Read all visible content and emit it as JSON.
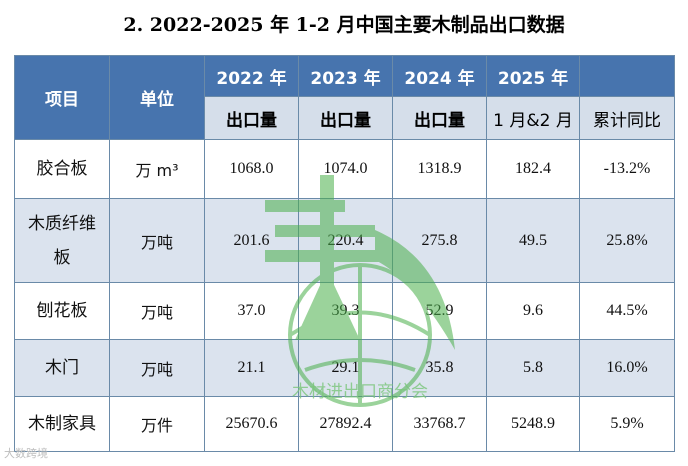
{
  "title": "2. 2022-2025 年 1-2 月中国主要木制品出口数据",
  "header": {
    "item": "项目",
    "unit": "单位",
    "years": [
      "2022 年",
      "2023 年",
      "2024 年",
      "2025 年"
    ],
    "sub": [
      "出口量",
      "出口量",
      "出口量",
      "1 月&2 月",
      "累计同比"
    ]
  },
  "rows": [
    {
      "item": "胶合板",
      "unit": "万 m³",
      "v": [
        "1068.0",
        "1074.0",
        "1318.9",
        "182.4",
        "-13.2%"
      ]
    },
    {
      "item": "木质纤维板",
      "unit": "万吨",
      "v": [
        "201.6",
        "220.4",
        "275.8",
        "49.5",
        "25.8%"
      ]
    },
    {
      "item": "刨花板",
      "unit": "万吨",
      "v": [
        "37.0",
        "39.3",
        "52.9",
        "9.6",
        "44.5%"
      ]
    },
    {
      "item": "木门",
      "unit": "万吨",
      "v": [
        "21.1",
        "29.1",
        "35.8",
        "5.8",
        "16.0%"
      ]
    },
    {
      "item": "木制家具",
      "unit": "万件",
      "v": [
        "25670.6",
        "27892.4",
        "33768.7",
        "5248.9",
        "5.9%"
      ]
    }
  ],
  "watermark": "木材进出口商分会",
  "corner_mark": "大数跨境",
  "colors": {
    "header_bg": "#4774ae",
    "sub_bg": "#d5deea",
    "alt_row_bg": "#dbe3ee",
    "border": "#6a8aa8"
  }
}
